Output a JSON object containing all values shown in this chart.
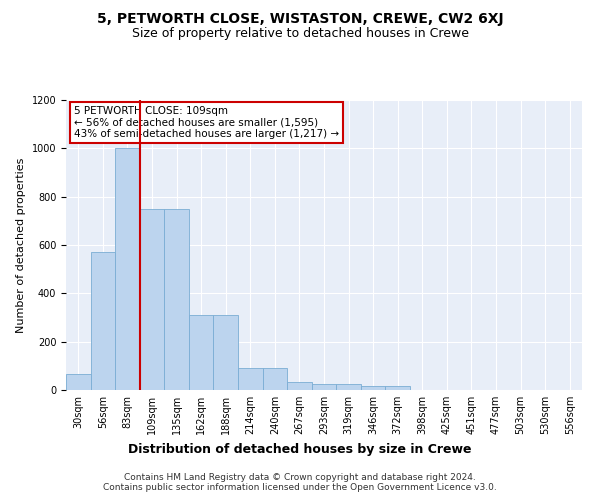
{
  "title": "5, PETWORTH CLOSE, WISTASTON, CREWE, CW2 6XJ",
  "subtitle": "Size of property relative to detached houses in Crewe",
  "xlabel": "Distribution of detached houses by size in Crewe",
  "ylabel": "Number of detached properties",
  "bar_labels": [
    "30sqm",
    "56sqm",
    "83sqm",
    "109sqm",
    "135sqm",
    "162sqm",
    "188sqm",
    "214sqm",
    "240sqm",
    "267sqm",
    "293sqm",
    "319sqm",
    "346sqm",
    "372sqm",
    "398sqm",
    "425sqm",
    "451sqm",
    "477sqm",
    "503sqm",
    "530sqm",
    "556sqm"
  ],
  "bar_values": [
    65,
    570,
    1000,
    750,
    750,
    310,
    310,
    90,
    90,
    35,
    25,
    25,
    15,
    15,
    0,
    0,
    0,
    0,
    0,
    0,
    0
  ],
  "bar_color": "#bcd4ee",
  "bar_edgecolor": "#7aadd4",
  "red_line_index": 3,
  "ylim": [
    0,
    1200
  ],
  "yticks": [
    0,
    200,
    400,
    600,
    800,
    1000,
    1200
  ],
  "annotation_text": "5 PETWORTH CLOSE: 109sqm\n← 56% of detached houses are smaller (1,595)\n43% of semi-detached houses are larger (1,217) →",
  "annotation_box_edgecolor": "#cc0000",
  "footer_line1": "Contains HM Land Registry data © Crown copyright and database right 2024.",
  "footer_line2": "Contains public sector information licensed under the Open Government Licence v3.0.",
  "bg_color": "#e8eef8",
  "title_fontsize": 10,
  "subtitle_fontsize": 9,
  "ylabel_fontsize": 8,
  "xlabel_fontsize": 9,
  "tick_fontsize": 7,
  "annotation_fontsize": 7.5,
  "footer_fontsize": 6.5
}
